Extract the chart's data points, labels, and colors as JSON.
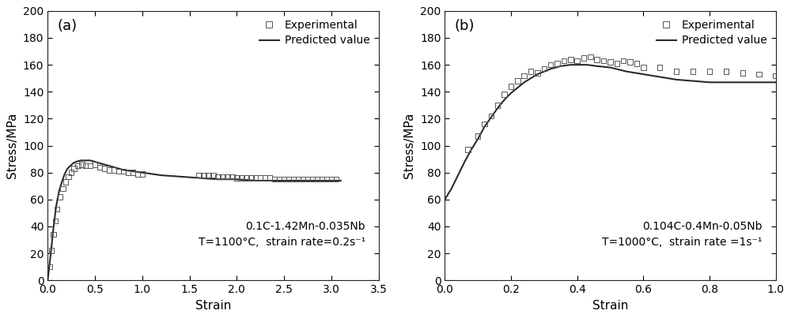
{
  "panel_a": {
    "label": "(a)",
    "annotation_line1": "0.1C-1.42Mn-0.035Nb",
    "annotation_line2": "T=1100°C,  strain rate=0.2s⁻¹",
    "xlabel": "Strain",
    "ylabel": "Stress/MPa",
    "xlim": [
      0.0,
      3.5
    ],
    "ylim": [
      0,
      200
    ],
    "xticks": [
      0.0,
      0.5,
      1.0,
      1.5,
      2.0,
      2.5,
      3.0,
      3.5
    ],
    "yticks": [
      0,
      20,
      40,
      60,
      80,
      100,
      120,
      140,
      160,
      180,
      200
    ],
    "exp_x": [
      0.02,
      0.04,
      0.06,
      0.08,
      0.1,
      0.13,
      0.16,
      0.19,
      0.22,
      0.25,
      0.28,
      0.32,
      0.36,
      0.4,
      0.45,
      0.5,
      0.55,
      0.6,
      0.65,
      0.7,
      0.75,
      0.8,
      0.85,
      0.9,
      0.95,
      1.0,
      1.6,
      1.65,
      1.7,
      1.75,
      1.8,
      1.85,
      1.9,
      1.95,
      2.0,
      2.05,
      2.1,
      2.15,
      2.2,
      2.25,
      2.3,
      2.35,
      2.4,
      2.45,
      2.5,
      2.55,
      2.6,
      2.65,
      2.7,
      2.75,
      2.8,
      2.85,
      2.9,
      2.95,
      3.0,
      3.05
    ],
    "exp_y": [
      10,
      22,
      34,
      44,
      53,
      62,
      68,
      73,
      77,
      80,
      83,
      85,
      86,
      85,
      85,
      86,
      84,
      83,
      82,
      82,
      81,
      81,
      80,
      80,
      79,
      79,
      78,
      78,
      78,
      78,
      77,
      77,
      77,
      77,
      76,
      76,
      76,
      76,
      76,
      76,
      76,
      76,
      75,
      75,
      75,
      75,
      75,
      75,
      75,
      75,
      75,
      75,
      75,
      75,
      75,
      75
    ],
    "pred_x": [
      0.0,
      0.03,
      0.06,
      0.09,
      0.12,
      0.15,
      0.18,
      0.21,
      0.24,
      0.27,
      0.3,
      0.35,
      0.4,
      0.45,
      0.5,
      0.55,
      0.6,
      0.7,
      0.8,
      0.9,
      1.0,
      1.2,
      1.4,
      1.6,
      1.8,
      2.0,
      2.2,
      2.4,
      2.6,
      2.8,
      3.0,
      3.1
    ],
    "pred_y": [
      0,
      18,
      38,
      55,
      66,
      73,
      79,
      83,
      85,
      87,
      88,
      89,
      89,
      89,
      88,
      87,
      86,
      84,
      82,
      81,
      80,
      78,
      77,
      76,
      75,
      75,
      74,
      74,
      74,
      74,
      74,
      74
    ]
  },
  "panel_b": {
    "label": "(b)",
    "annotation_line1": "0.104C-0.4Mn-0.05Nb",
    "annotation_line2": "T=1000°C,  strain rate =1s⁻¹",
    "xlabel": "Strain",
    "ylabel": "Stress/MPa",
    "xlim": [
      0.0,
      1.0
    ],
    "ylim": [
      0,
      200
    ],
    "xticks": [
      0.0,
      0.2,
      0.4,
      0.6,
      0.8,
      1.0
    ],
    "yticks": [
      0,
      20,
      40,
      60,
      80,
      100,
      120,
      140,
      160,
      180,
      200
    ],
    "exp_x": [
      0.07,
      0.1,
      0.12,
      0.14,
      0.16,
      0.18,
      0.2,
      0.22,
      0.24,
      0.26,
      0.28,
      0.3,
      0.32,
      0.34,
      0.36,
      0.38,
      0.4,
      0.42,
      0.44,
      0.46,
      0.48,
      0.5,
      0.52,
      0.54,
      0.56,
      0.58,
      0.6,
      0.65,
      0.7,
      0.75,
      0.8,
      0.85,
      0.9,
      0.95,
      1.0
    ],
    "exp_y": [
      97,
      107,
      116,
      122,
      130,
      138,
      144,
      148,
      152,
      155,
      154,
      157,
      160,
      161,
      163,
      164,
      163,
      165,
      166,
      164,
      163,
      162,
      161,
      163,
      162,
      161,
      158,
      158,
      155,
      155,
      155,
      155,
      154,
      153,
      152
    ],
    "pred_x": [
      0.0,
      0.02,
      0.04,
      0.06,
      0.08,
      0.1,
      0.12,
      0.14,
      0.16,
      0.18,
      0.2,
      0.22,
      0.24,
      0.26,
      0.28,
      0.3,
      0.32,
      0.35,
      0.38,
      0.4,
      0.43,
      0.46,
      0.5,
      0.55,
      0.6,
      0.65,
      0.7,
      0.75,
      0.8,
      0.85,
      0.9,
      0.95,
      1.0
    ],
    "pred_y": [
      60,
      68,
      78,
      88,
      97,
      105,
      114,
      121,
      128,
      134,
      139,
      143,
      147,
      150,
      153,
      155,
      157,
      159,
      160,
      160,
      160,
      159,
      158,
      155,
      153,
      151,
      149,
      148,
      147,
      147,
      147,
      147,
      147
    ]
  },
  "legend_experimental": "Experimental",
  "legend_predicted": "Predicted value",
  "line_color": "#2b2b2b",
  "marker_edgecolor": "#555555",
  "background_color": "#ffffff",
  "text_color": "#000000",
  "fontsize_label": 11,
  "fontsize_tick": 10,
  "fontsize_legend": 10,
  "fontsize_annotation": 10,
  "fontsize_panel_label": 13
}
